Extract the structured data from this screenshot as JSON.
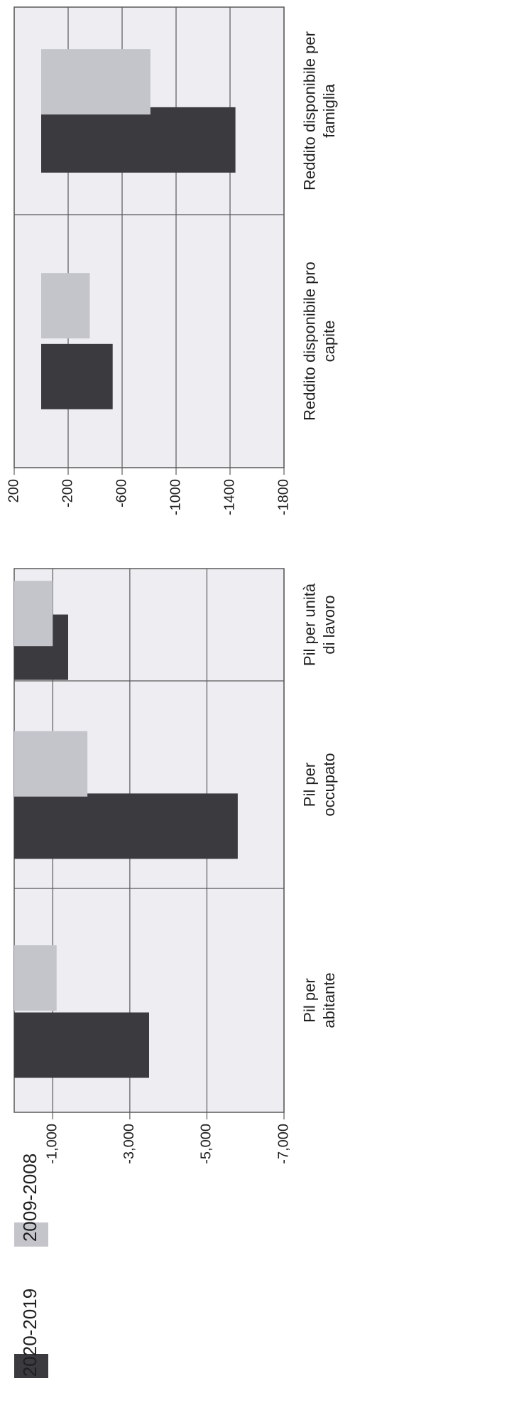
{
  "chart_data": [
    {
      "type": "bar",
      "orientation": "rotated 90° clockwise",
      "categories": [
        "Reddito disponibile pro capite",
        "Reddito disponibile per famiglia"
      ],
      "series": [
        {
          "name": "2020-2019",
          "values": [
            -530,
            -1440
          ]
        },
        {
          "name": "2009-2008",
          "values": [
            -360,
            -810
          ]
        }
      ],
      "ylim": [
        200,
        -1800
      ],
      "ticks": [
        "200",
        "-200",
        "-600",
        "-1000",
        "-1400",
        "-1800"
      ],
      "tick_values": [
        200,
        -200,
        -600,
        -1000,
        -1400,
        -1800
      ],
      "grid": true
    },
    {
      "type": "bar",
      "orientation": "rotated 90° clockwise",
      "categories": [
        "Pil per abitante",
        "Pil per occupato",
        "Pil per unità di lavoro"
      ],
      "series": [
        {
          "name": "2020-2019",
          "values": [
            -3500,
            -5800,
            -1400
          ]
        },
        {
          "name": "2009-2008",
          "values": [
            -1100,
            -1900,
            -1000
          ]
        }
      ],
      "ylim": [
        0,
        -7000
      ],
      "ticks": [
        "-1,000",
        "-3,000",
        "-5,000",
        "-7,000"
      ],
      "tick_values": [
        -1000,
        -3000,
        -5000,
        -7000
      ],
      "grid": true
    }
  ],
  "legend": {
    "items": [
      {
        "label": "2020-2019",
        "color": "#3a3a3f"
      },
      {
        "label": "2009-2008",
        "color": "#c4c4cb"
      }
    ]
  },
  "colors": {
    "dark": "#3a3a3f",
    "light": "#c4c4cb",
    "grid": "#5a5a5a",
    "background": "#ededf2"
  }
}
